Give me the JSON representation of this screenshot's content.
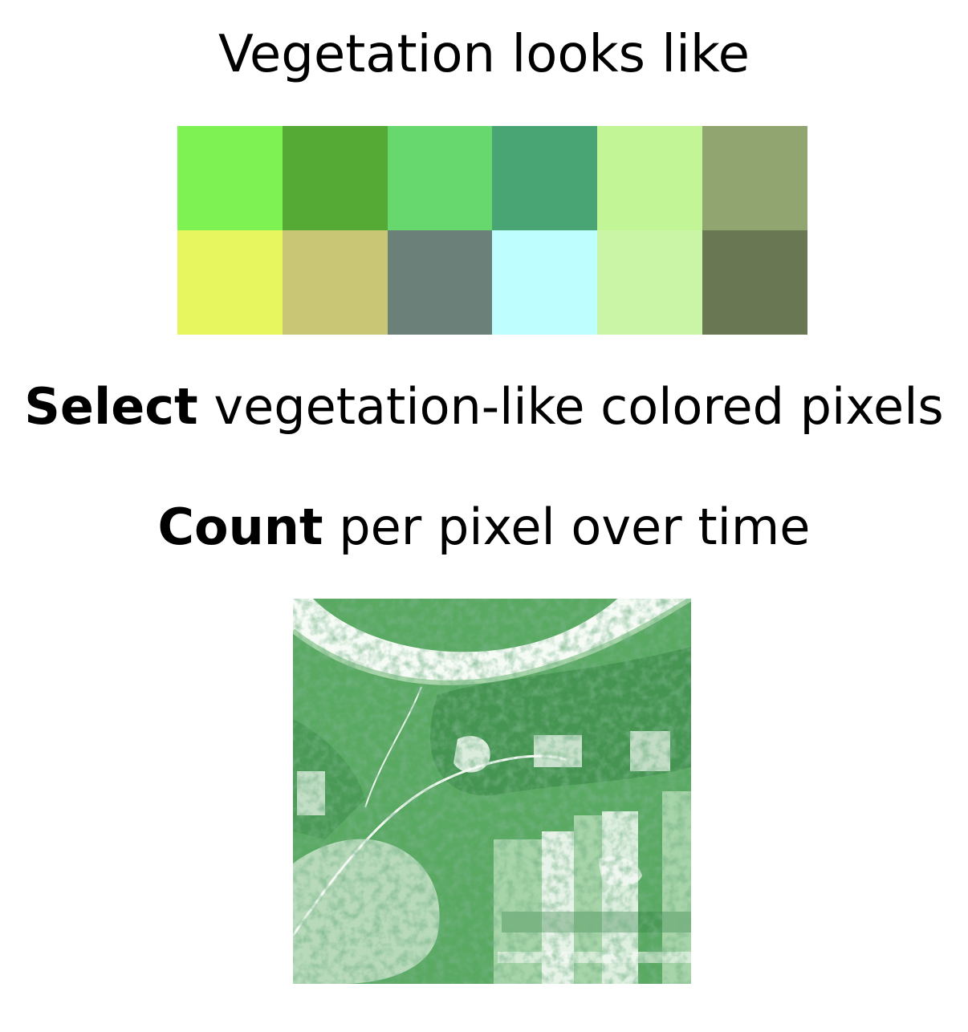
{
  "title": "Vegetation looks like",
  "swatches": {
    "row1": [
      "#7df252",
      "#55a935",
      "#66d86e",
      "#4aa574",
      "#c1f595",
      "#90a56f"
    ],
    "row2": [
      "#e7f55e",
      "#c9c676",
      "#6a8078",
      "#bffefe",
      "#cbf5a6",
      "#6a7753"
    ]
  },
  "steps": {
    "select": {
      "bold": "Select",
      "rest": " vegetation-like colored pixels"
    },
    "count": {
      "bold": "Count",
      "rest": " per pixel over time"
    }
  },
  "map": {
    "icon": "vegetation-count-map",
    "colors": {
      "low": "#f6fbf6",
      "mid": "#a7d4a9",
      "high": "#5aa963",
      "dense": "#2f7b3f"
    }
  }
}
